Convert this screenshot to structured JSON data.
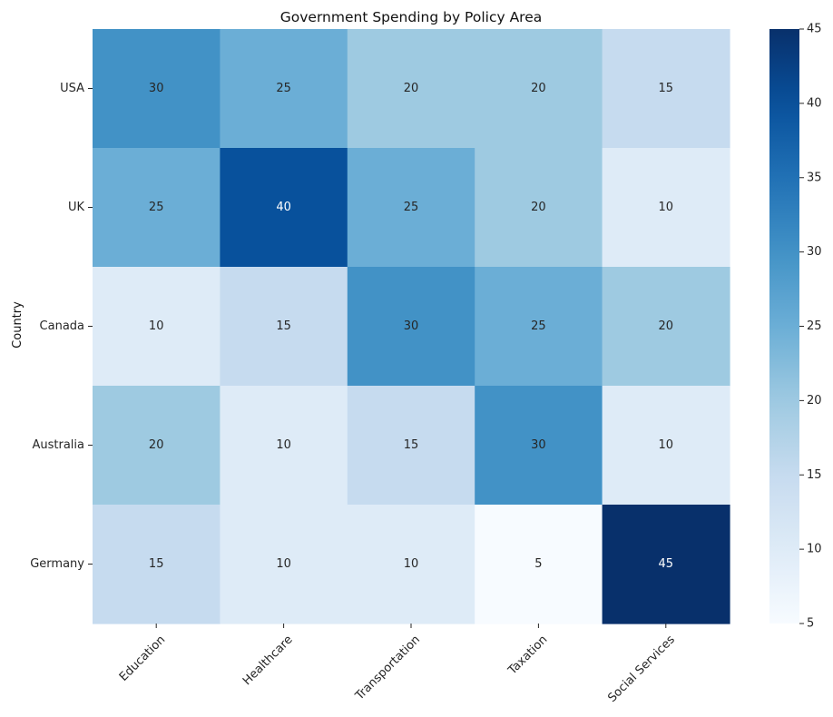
{
  "chart_data": {
    "type": "heatmap",
    "title": "Government Spending by Policy Area",
    "xlabel": "",
    "ylabel": "Country",
    "rows": [
      "USA",
      "UK",
      "Canada",
      "Australia",
      "Germany"
    ],
    "columns": [
      "Education",
      "Healthcare",
      "Transportation",
      "Taxation",
      "Social Services"
    ],
    "values": [
      [
        30,
        25,
        20,
        20,
        15
      ],
      [
        25,
        40,
        25,
        20,
        10
      ],
      [
        10,
        15,
        30,
        25,
        20
      ],
      [
        20,
        10,
        15,
        30,
        10
      ],
      [
        15,
        10,
        10,
        5,
        45
      ]
    ],
    "annotated": true,
    "colormap": "Blues",
    "colorbar": {
      "min": 5,
      "max": 45,
      "ticks": [
        5,
        10,
        15,
        20,
        25,
        30,
        35,
        40,
        45
      ]
    },
    "grid": false
  }
}
